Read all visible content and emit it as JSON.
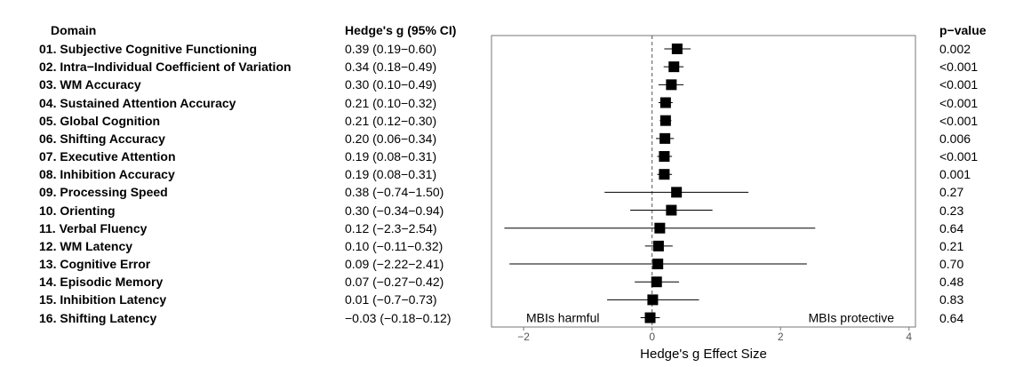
{
  "headers": {
    "domain": "Domain",
    "effect": "Hedge's g (95% CI)",
    "pvalue": "p−value"
  },
  "rows": [
    {
      "label": "01. Subjective Cognitive Functioning",
      "ci_text": "0.39 (0.19−0.60)",
      "p": "0.002"
    },
    {
      "label": "02. Intra−Individual Coefficient of Variation",
      "ci_text": "0.34 (0.18−0.49)",
      "p": "<0.001"
    },
    {
      "label": "03. WM Accuracy",
      "ci_text": "0.30 (0.10−0.49)",
      "p": "<0.001"
    },
    {
      "label": "04. Sustained Attention Accuracy",
      "ci_text": "0.21 (0.10−0.32)",
      "p": "<0.001"
    },
    {
      "label": "05. Global Cognition",
      "ci_text": "0.21 (0.12−0.30)",
      "p": "<0.001"
    },
    {
      "label": "06. Shifting Accuracy",
      "ci_text": "0.20 (0.06−0.34)",
      "p": "0.006"
    },
    {
      "label": "07. Executive Attention",
      "ci_text": "0.19 (0.08−0.31)",
      "p": "<0.001"
    },
    {
      "label": "08. Inhibition Accuracy",
      "ci_text": "0.19 (0.08−0.31)",
      "p": "0.001"
    },
    {
      "label": "09. Processing Speed",
      "ci_text": "0.38 (−0.74−1.50)",
      "p": "0.27"
    },
    {
      "label": "10. Orienting",
      "ci_text": "0.30 (−0.34−0.94)",
      "p": "0.23"
    },
    {
      "label": "11. Verbal Fluency",
      "ci_text": "0.12 (−2.3−2.54)",
      "p": "0.64"
    },
    {
      "label": "12. WM Latency",
      "ci_text": "0.10 (−0.11−0.32)",
      "p": "0.21"
    },
    {
      "label": "13. Cognitive Error",
      "ci_text": "0.09 (−2.22−2.41)",
      "p": "0.70"
    },
    {
      "label": "14. Episodic Memory",
      "ci_text": "0.07 (−0.27−0.42)",
      "p": "0.48"
    },
    {
      "label": "15. Inhibition Latency",
      "ci_text": "0.01 (−0.7−0.73)",
      "p": "0.83"
    },
    {
      "label": "16. Shifting Latency",
      "ci_text": "−0.03 (−0.18−0.12)",
      "p": "0.64"
    }
  ],
  "chart_data": {
    "type": "forest",
    "xlabel": "Hedge's g Effect Size",
    "xlim": [
      -2.5,
      4.1
    ],
    "xticks": [
      -2,
      0,
      2,
      4
    ],
    "xtick_labels": [
      "−2",
      "0",
      "2",
      "4"
    ],
    "reference_line": 0,
    "annotations": {
      "left": "MBIs harmful",
      "right": "MBIs protective"
    },
    "estimates": [
      0.39,
      0.34,
      0.3,
      0.21,
      0.21,
      0.2,
      0.19,
      0.19,
      0.38,
      0.3,
      0.12,
      0.1,
      0.09,
      0.07,
      0.01,
      -0.03
    ],
    "lower": [
      0.19,
      0.18,
      0.1,
      0.1,
      0.12,
      0.06,
      0.08,
      0.08,
      -0.74,
      -0.34,
      -2.3,
      -0.11,
      -2.22,
      -0.27,
      -0.7,
      -0.18
    ],
    "upper": [
      0.6,
      0.49,
      0.49,
      0.32,
      0.3,
      0.34,
      0.31,
      0.31,
      1.5,
      0.94,
      2.54,
      0.32,
      2.41,
      0.42,
      0.73,
      0.12
    ]
  }
}
